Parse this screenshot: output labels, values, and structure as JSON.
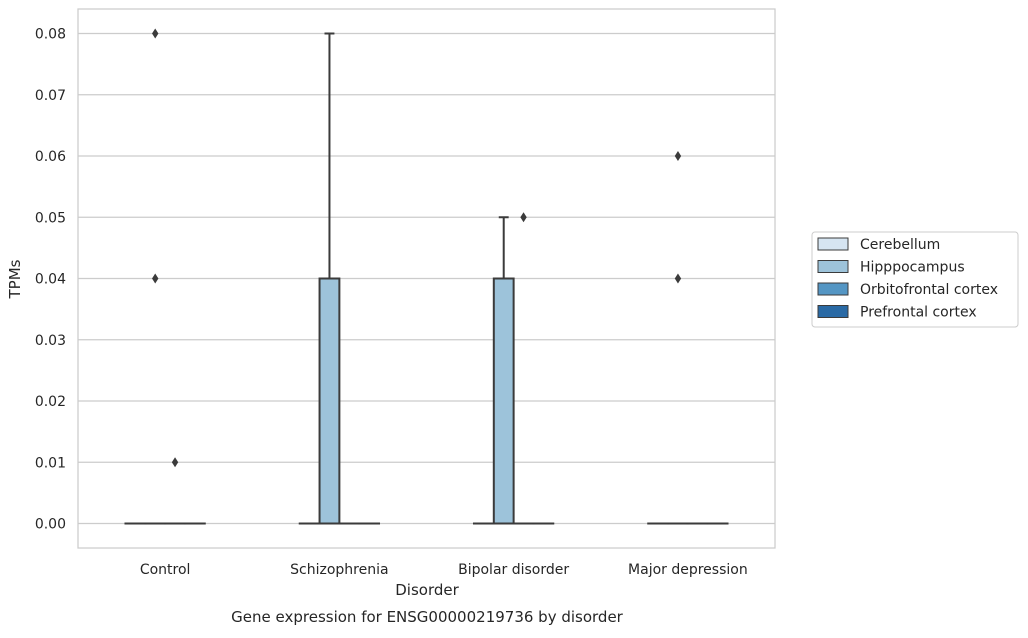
{
  "chart_data": {
    "type": "box",
    "caption": "Gene expression for ENSG00000219736 by disorder",
    "xlabel": "Disorder",
    "ylabel": "TPMs",
    "ylim": [
      -0.004,
      0.084
    ],
    "yticks": [
      0.0,
      0.01,
      0.02,
      0.03,
      0.04,
      0.05,
      0.06,
      0.07,
      0.08
    ],
    "ytick_labels": [
      "0.00",
      "0.01",
      "0.02",
      "0.03",
      "0.04",
      "0.05",
      "0.06",
      "0.07",
      "0.08"
    ],
    "grid": true,
    "legend_position": "right",
    "categories": [
      "Control",
      "Schizophrenia",
      "Bipolar disorder",
      "Major depression"
    ],
    "series": [
      {
        "name": "Cerebellum",
        "color": "#d6e5f2",
        "boxes": [
          {
            "category": "Control",
            "q1": 0,
            "median": 0,
            "q3": 0,
            "whisker_low": 0,
            "whisker_high": 0,
            "outliers": []
          },
          {
            "category": "Schizophrenia",
            "q1": 0,
            "median": 0,
            "q3": 0,
            "whisker_low": 0,
            "whisker_high": 0,
            "outliers": []
          },
          {
            "category": "Bipolar disorder",
            "q1": 0,
            "median": 0,
            "q3": 0,
            "whisker_low": 0,
            "whisker_high": 0,
            "outliers": []
          },
          {
            "category": "Major depression",
            "q1": 0,
            "median": 0,
            "q3": 0,
            "whisker_low": 0,
            "whisker_high": 0,
            "outliers": []
          }
        ]
      },
      {
        "name": "Hipppocampus",
        "color": "#9dc3da",
        "boxes": [
          {
            "category": "Control",
            "q1": 0,
            "median": 0,
            "q3": 0,
            "whisker_low": 0,
            "whisker_high": 0,
            "outliers": [
              0.08,
              0.04
            ]
          },
          {
            "category": "Schizophrenia",
            "q1": 0,
            "median": 0,
            "q3": 0.04,
            "whisker_low": 0,
            "whisker_high": 0.08,
            "outliers": []
          },
          {
            "category": "Bipolar disorder",
            "q1": 0,
            "median": 0,
            "q3": 0.04,
            "whisker_low": 0,
            "whisker_high": 0.05,
            "outliers": []
          },
          {
            "category": "Major depression",
            "q1": 0,
            "median": 0,
            "q3": 0,
            "whisker_low": 0,
            "whisker_high": 0,
            "outliers": [
              0.06,
              0.04
            ]
          }
        ]
      },
      {
        "name": "Orbitofrontal cortex",
        "color": "#5496c4",
        "boxes": [
          {
            "category": "Control",
            "q1": 0,
            "median": 0,
            "q3": 0,
            "whisker_low": 0,
            "whisker_high": 0,
            "outliers": [
              0.01
            ]
          },
          {
            "category": "Schizophrenia",
            "q1": 0,
            "median": 0,
            "q3": 0,
            "whisker_low": 0,
            "whisker_high": 0,
            "outliers": []
          },
          {
            "category": "Bipolar disorder",
            "q1": 0,
            "median": 0,
            "q3": 0,
            "whisker_low": 0,
            "whisker_high": 0,
            "outliers": [
              0.05
            ]
          },
          {
            "category": "Major depression",
            "q1": 0,
            "median": 0,
            "q3": 0,
            "whisker_low": 0,
            "whisker_high": 0,
            "outliers": []
          }
        ]
      },
      {
        "name": "Prefrontal cortex",
        "color": "#2a6aa5",
        "boxes": [
          {
            "category": "Control",
            "q1": 0,
            "median": 0,
            "q3": 0,
            "whisker_low": 0,
            "whisker_high": 0,
            "outliers": []
          },
          {
            "category": "Schizophrenia",
            "q1": 0,
            "median": 0,
            "q3": 0,
            "whisker_low": 0,
            "whisker_high": 0,
            "outliers": []
          },
          {
            "category": "Bipolar disorder",
            "q1": 0,
            "median": 0,
            "q3": 0,
            "whisker_low": 0,
            "whisker_high": 0,
            "outliers": []
          },
          {
            "category": "Major depression",
            "q1": 0,
            "median": 0,
            "q3": 0,
            "whisker_low": 0,
            "whisker_high": 0,
            "outliers": []
          }
        ]
      }
    ],
    "colors": {
      "grid": "#cccccc",
      "frame": "#cccccc",
      "box_edge": "#3b3b3b",
      "text": "#262626"
    }
  }
}
